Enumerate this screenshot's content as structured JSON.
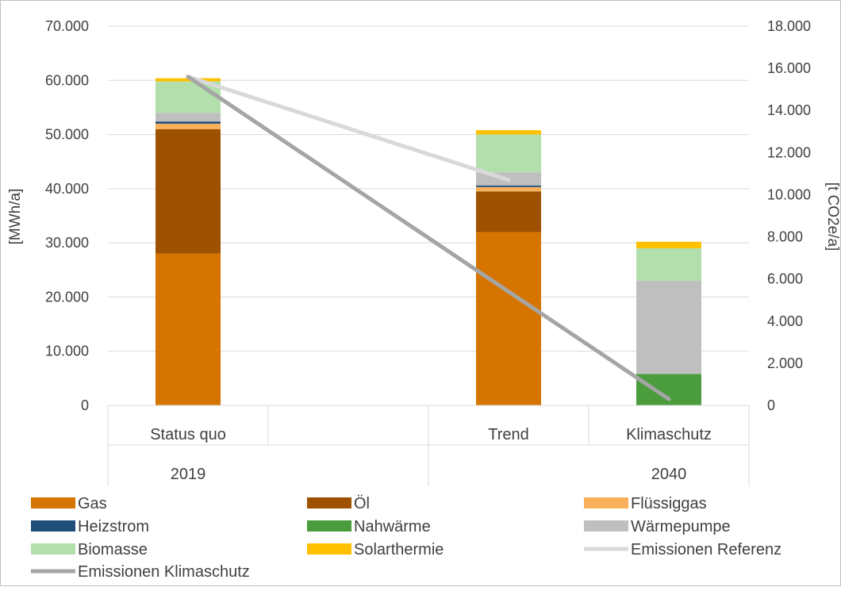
{
  "chart_data": {
    "type": "bar",
    "stacked": true,
    "ylabel": "[MWh/a]",
    "y2label": "[t CO2e/a]",
    "ylim": [
      0,
      70000
    ],
    "y2lim": [
      0,
      18000
    ],
    "y_ticks": [
      "0",
      "10.000",
      "20.000",
      "30.000",
      "40.000",
      "50.000",
      "60.000",
      "70.000"
    ],
    "y2_ticks": [
      "0",
      "2.000",
      "4.000",
      "6.000",
      "8.000",
      "10.000",
      "12.000",
      "14.000",
      "16.000",
      "18.000"
    ],
    "categories": [
      "Status quo",
      "",
      "Trend",
      "Klimaschutz"
    ],
    "groups": [
      {
        "label": "2019",
        "span": [
          0,
          1
        ]
      },
      {
        "label": "2040",
        "span": [
          2,
          3
        ]
      }
    ],
    "grid": true,
    "legend_position": "bottom",
    "series": [
      {
        "name": "Gas",
        "color": "#d57500",
        "values": [
          28000,
          null,
          32000,
          0
        ]
      },
      {
        "name": "Öl",
        "color": "#9e5200",
        "values": [
          23000,
          null,
          7500,
          0
        ]
      },
      {
        "name": "Flüssiggas",
        "color": "#f9b05a",
        "values": [
          1000,
          null,
          800,
          0
        ]
      },
      {
        "name": "Heizstrom",
        "color": "#1f4e79",
        "values": [
          400,
          null,
          300,
          0
        ]
      },
      {
        "name": "Nahwärme",
        "color": "#4a9c3c",
        "values": [
          0,
          null,
          0,
          5800
        ]
      },
      {
        "name": "Wärmepumpe",
        "color": "#bfbfbf",
        "values": [
          1600,
          null,
          2400,
          17200
        ]
      },
      {
        "name": "Biomasse",
        "color": "#b3dfad",
        "values": [
          5800,
          null,
          7000,
          6000
        ]
      },
      {
        "name": "Solarthermie",
        "color": "#ffc000",
        "values": [
          600,
          null,
          800,
          1200
        ]
      }
    ],
    "lines": [
      {
        "name": "Emissionen Referenz",
        "axis": "secondary",
        "color": "#d9d9d9",
        "points": [
          [
            0,
            15600
          ],
          [
            2,
            10700
          ]
        ]
      },
      {
        "name": "Emissionen Klimaschutz",
        "axis": "secondary",
        "color": "#a5a5a5",
        "points": [
          [
            0,
            15600
          ],
          [
            3,
            300
          ]
        ]
      }
    ]
  }
}
